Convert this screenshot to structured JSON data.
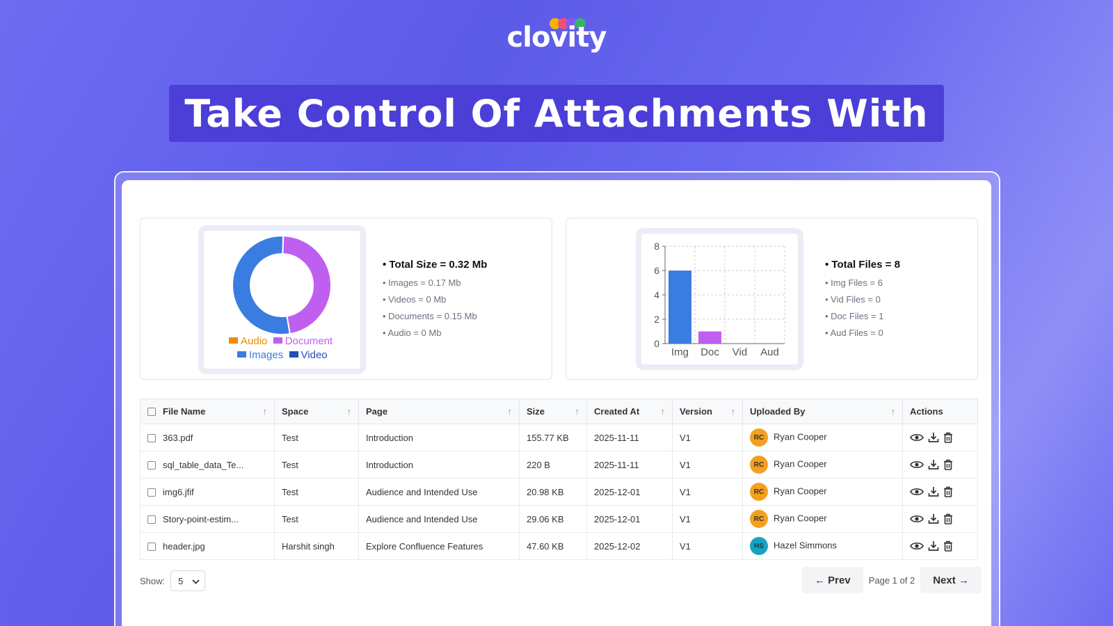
{
  "brand": {
    "logo_text": "clovity",
    "dot_colors": [
      "#f5b400",
      "#ef4f7a",
      "#7a5cf0",
      "#3bb06a"
    ]
  },
  "banner": {
    "title": "Take Control Of Attachments With"
  },
  "size_panel": {
    "total_label": "Total Size =  0.32 Mb",
    "items": [
      "Images = 0.17 Mb",
      "Videos = 0 Mb",
      "Documents = 0.15 Mb",
      "Audio = 0 Mb"
    ]
  },
  "files_panel": {
    "total_label": "Total Files =  8",
    "items": [
      "Img Files = 6",
      "Vid Files = 0",
      "Doc Files = 1",
      "Aud Files = 0"
    ]
  },
  "chart_data": [
    {
      "type": "pie",
      "categories": [
        "Audio",
        "Document",
        "Images",
        "Video"
      ],
      "values": [
        0,
        0.15,
        0.17,
        0
      ],
      "colors": [
        "#f08a00",
        "#bf5ff0",
        "#3a7de0",
        "#1f4fb8"
      ],
      "legend": [
        "Audio",
        "Document",
        "Images",
        "Video"
      ],
      "legend_position": "bottom"
    },
    {
      "type": "bar",
      "categories": [
        "Img",
        "Doc",
        "Vid",
        "Aud"
      ],
      "values": [
        6,
        1,
        0,
        0
      ],
      "colors": [
        "#3a7de0",
        "#bf5ff0",
        "#3a7de0",
        "#3a7de0"
      ],
      "ylim": [
        0,
        8
      ],
      "yticks": [
        "0",
        "2",
        "4",
        "6",
        "8"
      ],
      "grid": true
    }
  ],
  "table": {
    "headers": [
      "File Name",
      "Space",
      "Page",
      "Size",
      "Created At",
      "Version",
      "Uploaded By",
      "Actions"
    ],
    "rows": [
      {
        "file": "363.pdf",
        "space": "Test",
        "page": "Introduction",
        "size": "155.77 KB",
        "created": "2025-11-11",
        "version": "V1",
        "initials": "RC",
        "user": "Ryan Cooper",
        "avatar_color": "#f3a01f"
      },
      {
        "file": "sql_table_data_Te...",
        "space": "Test",
        "page": "Introduction",
        "size": "220 B",
        "created": "2025-11-11",
        "version": "V1",
        "initials": "RC",
        "user": "Ryan Cooper",
        "avatar_color": "#f3a01f"
      },
      {
        "file": "img6.jfif",
        "space": "Test",
        "page": "Audience and Intended Use",
        "size": "20.98 KB",
        "created": "2025-12-01",
        "version": "V1",
        "initials": "RC",
        "user": "Ryan Cooper",
        "avatar_color": "#f3a01f"
      },
      {
        "file": "Story-point-estim...",
        "space": "Test",
        "page": "Audience and Intended Use",
        "size": "29.06 KB",
        "created": "2025-12-01",
        "version": "V1",
        "initials": "RC",
        "user": "Ryan Cooper",
        "avatar_color": "#f3a01f"
      },
      {
        "file": "header.jpg",
        "space": "Harshit singh",
        "page": "Explore Confluence Features",
        "size": "47.60 KB",
        "created": "2025-12-02",
        "version": "V1",
        "initials": "HS",
        "user": "Hazel Simmons",
        "avatar_color": "#17a2c4"
      }
    ]
  },
  "footer": {
    "show_label": "Show:",
    "page_size": "5",
    "prev_label": "← Prev",
    "page_info": "Page 1 of 2",
    "next_label": "Next →"
  }
}
